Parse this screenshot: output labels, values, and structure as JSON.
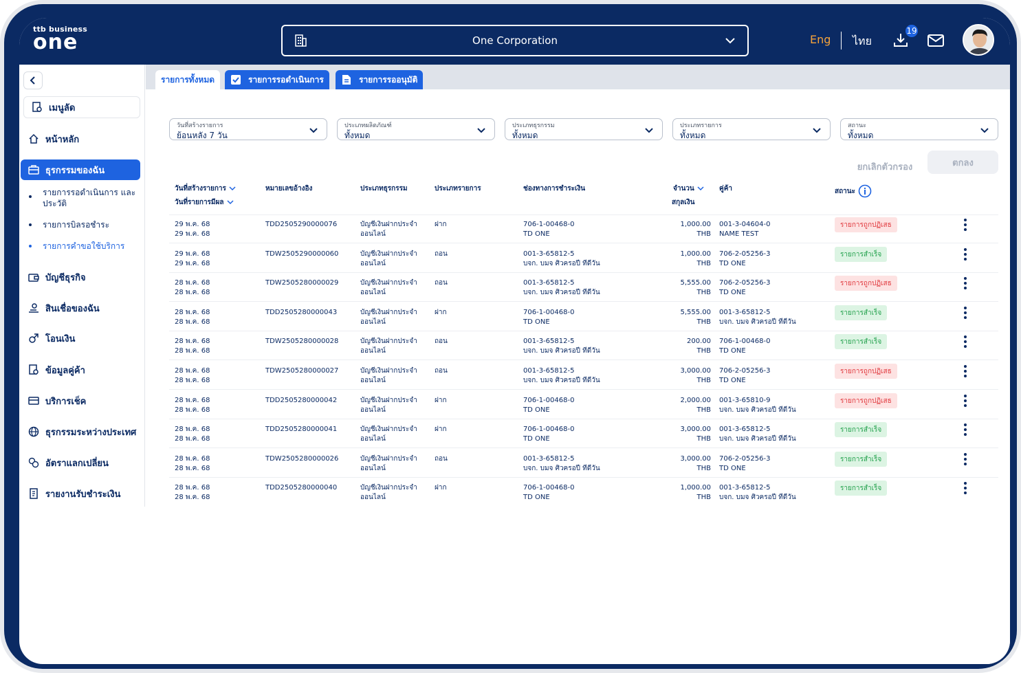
{
  "header": {
    "logo_small": "ttb business",
    "logo_big": "one",
    "corporation": "One Corporation",
    "lang_eng": "Eng",
    "lang_thai": "ไทย",
    "download_count": "19"
  },
  "sidebar": {
    "menu_search": "เมนูลัด",
    "items": [
      {
        "label": "หน้าหลัก",
        "icon": "home-icon"
      },
      {
        "label": "ธุรกรรมของฉัน",
        "icon": "briefcase-icon"
      },
      {
        "label": "บัญชีธุรกิจ",
        "icon": "wallet-icon"
      },
      {
        "label": "สินเชื่อของฉัน",
        "icon": "loan-icon"
      },
      {
        "label": "โอนเงิน",
        "icon": "transfer-icon"
      },
      {
        "label": "ข้อมูลคู่ค้า",
        "icon": "partner-icon"
      },
      {
        "label": "บริการเช็ค",
        "icon": "cheque-icon"
      },
      {
        "label": "ธุรกรรมระหว่างประเทศ",
        "icon": "globe-icon"
      },
      {
        "label": "อัตราแลกเปลี่ยน",
        "icon": "exchange-icon"
      },
      {
        "label": "รายงานรับชำระเงิน",
        "icon": "report-icon"
      }
    ],
    "sub_items": [
      "รายการรอดำเนินการ และประวัติ",
      "รายการบิลรอชำระ",
      "รายการคำขอใช้บริการ"
    ]
  },
  "tabs": [
    "รายการทั้งหมด",
    "รายการรอดำเนินการ",
    "รายการรออนุมัติ"
  ],
  "filters": [
    {
      "label": "วันที่สร้างรายการ",
      "value": "ย้อนหลัง 7 วัน"
    },
    {
      "label": "ประเภทผลิตภัณฑ์",
      "value": "ทั้งหมด"
    },
    {
      "label": "ประเภทธุรกรรม",
      "value": "ทั้งหมด"
    },
    {
      "label": "ประเภทรายการ",
      "value": "ทั้งหมด"
    },
    {
      "label": "สถานะ",
      "value": "ทั้งหมด"
    }
  ],
  "actions": {
    "clear": "ยกเลิกตัวกรอง",
    "ok": "ตกลง"
  },
  "table": {
    "headers": {
      "created_date": "วันที่สร้างรายการ",
      "effective_date": "วันที่รายการมีผล",
      "reference": "หมายเลขอ้างอิง",
      "txn_type": "ประเภทธุรกรรม",
      "item_type": "ประเภทรายการ",
      "channel": "ช่องทางการชำระเงิน",
      "amount": "จำนวน",
      "currency": "สกุลเงิน",
      "counterparty": "คู่ค้า",
      "status": "สถานะ"
    },
    "rows": [
      {
        "d1": "29 พ.ค. 68",
        "d2": "29 พ.ค. 68",
        "ref": "TDD2505290000076",
        "t1": "บัญชีเงินฝากประจำ",
        "t2": "ออนไลน์",
        "type": "ฝาก",
        "c1": "706-1-00468-0",
        "c2": "TD ONE",
        "amt": "1,000.00",
        "cur": "THB",
        "p1": "001-3-04604-0",
        "p2": "NAME TEST",
        "status": "รายการถูกปฏิเสธ",
        "ok": false
      },
      {
        "d1": "29 พ.ค. 68",
        "d2": "29 พ.ค. 68",
        "ref": "TDW2505290000060",
        "t1": "บัญชีเงินฝากประจำ",
        "t2": "ออนไลน์",
        "type": "ถอน",
        "c1": "001-3-65812-5",
        "c2": "บจก. บมจ ศิวครอปี ทีดีวัน",
        "amt": "1,000.00",
        "cur": "THB",
        "p1": "706-2-05256-3",
        "p2": "TD ONE",
        "status": "รายการสำเร็จ",
        "ok": true
      },
      {
        "d1": "28 พ.ค. 68",
        "d2": "28 พ.ค. 68",
        "ref": "TDW2505280000029",
        "t1": "บัญชีเงินฝากประจำ",
        "t2": "ออนไลน์",
        "type": "ถอน",
        "c1": "001-3-65812-5",
        "c2": "บจก. บมจ ศิวครอปี ทีดีวัน",
        "amt": "5,555.00",
        "cur": "THB",
        "p1": "706-2-05256-3",
        "p2": "TD ONE",
        "status": "รายการถูกปฏิเสธ",
        "ok": false
      },
      {
        "d1": "28 พ.ค. 68",
        "d2": "28 พ.ค. 68",
        "ref": "TDD2505280000043",
        "t1": "บัญชีเงินฝากประจำ",
        "t2": "ออนไลน์",
        "type": "ฝาก",
        "c1": "706-1-00468-0",
        "c2": "TD ONE",
        "amt": "5,555.00",
        "cur": "THB",
        "p1": "001-3-65812-5",
        "p2": "บจก. บมจ ศิวครอปี ทีดีวัน",
        "status": "รายการสำเร็จ",
        "ok": true
      },
      {
        "d1": "28 พ.ค. 68",
        "d2": "28 พ.ค. 68",
        "ref": "TDW2505280000028",
        "t1": "บัญชีเงินฝากประจำ",
        "t2": "ออนไลน์",
        "type": "ถอน",
        "c1": "001-3-65812-5",
        "c2": "บจก. บมจ ศิวครอปี ทีดีวัน",
        "amt": "200.00",
        "cur": "THB",
        "p1": "706-1-00468-0",
        "p2": "TD ONE",
        "status": "รายการสำเร็จ",
        "ok": true
      },
      {
        "d1": "28 พ.ค. 68",
        "d2": "28 พ.ค. 68",
        "ref": "TDW2505280000027",
        "t1": "บัญชีเงินฝากประจำ",
        "t2": "ออนไลน์",
        "type": "ถอน",
        "c1": "001-3-65812-5",
        "c2": "บจก. บมจ ศิวครอปี ทีดีวัน",
        "amt": "3,000.00",
        "cur": "THB",
        "p1": "706-2-05256-3",
        "p2": "TD ONE",
        "status": "รายการถูกปฏิเสธ",
        "ok": false
      },
      {
        "d1": "28 พ.ค. 68",
        "d2": "28 พ.ค. 68",
        "ref": "TDD2505280000042",
        "t1": "บัญชีเงินฝากประจำ",
        "t2": "ออนไลน์",
        "type": "ฝาก",
        "c1": "706-1-00468-0",
        "c2": "TD ONE",
        "amt": "2,000.00",
        "cur": "THB",
        "p1": "001-3-65810-9",
        "p2": "บจก. บมจ ศิวครอปี ทีดีวัน",
        "status": "รายการถูกปฏิเสธ",
        "ok": false
      },
      {
        "d1": "28 พ.ค. 68",
        "d2": "28 พ.ค. 68",
        "ref": "TDD2505280000041",
        "t1": "บัญชีเงินฝากประจำ",
        "t2": "ออนไลน์",
        "type": "ฝาก",
        "c1": "706-1-00468-0",
        "c2": "TD ONE",
        "amt": "3,000.00",
        "cur": "THB",
        "p1": "001-3-65812-5",
        "p2": "บจก. บมจ ศิวครอปี ทีดีวัน",
        "status": "รายการสำเร็จ",
        "ok": true
      },
      {
        "d1": "28 พ.ค. 68",
        "d2": "28 พ.ค. 68",
        "ref": "TDW2505280000026",
        "t1": "บัญชีเงินฝากประจำ",
        "t2": "ออนไลน์",
        "type": "ถอน",
        "c1": "001-3-65812-5",
        "c2": "บจก. บมจ ศิวครอปี ทีดีวัน",
        "amt": "3,000.00",
        "cur": "THB",
        "p1": "706-2-05256-3",
        "p2": "TD ONE",
        "status": "รายการสำเร็จ",
        "ok": true
      },
      {
        "d1": "28 พ.ค. 68",
        "d2": "28 พ.ค. 68",
        "ref": "TDD2505280000040",
        "t1": "บัญชีเงินฝากประจำ",
        "t2": "ออนไลน์",
        "type": "ฝาก",
        "c1": "706-1-00468-0",
        "c2": "TD ONE",
        "amt": "1,000.00",
        "cur": "THB",
        "p1": "001-3-65812-5",
        "p2": "บจก. บมจ ศิวครอปี ทีดีวัน",
        "status": "รายการสำเร็จ",
        "ok": true
      }
    ]
  },
  "colors": {
    "navy": "#0b2a63",
    "accent": "#1e63e0",
    "eng": "#f5a33b",
    "fail_bg": "#fde2e2",
    "fail_fg": "#e0363b",
    "ok_bg": "#dcf4e3",
    "ok_fg": "#21a04b"
  }
}
